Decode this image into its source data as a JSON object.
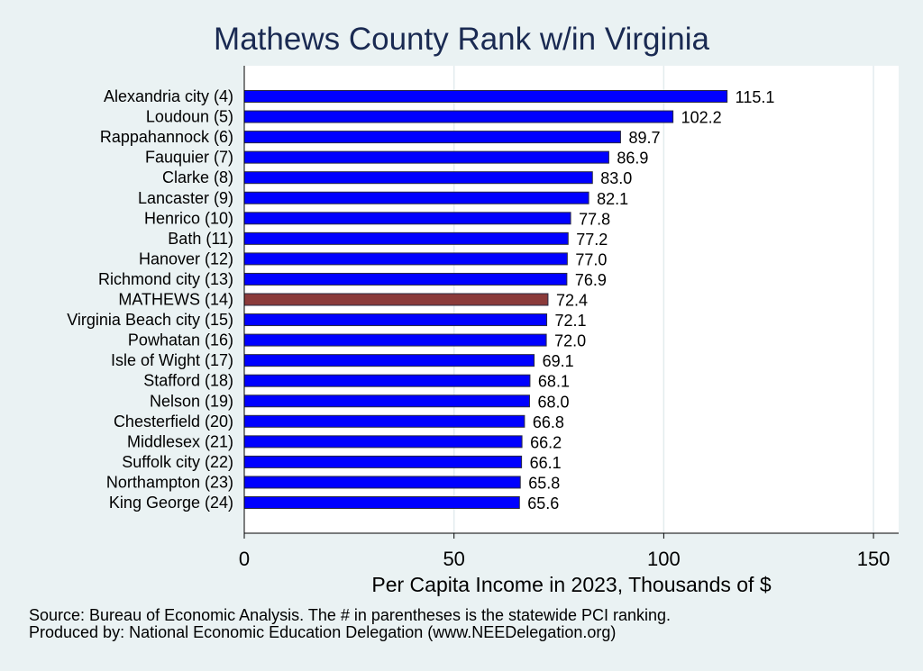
{
  "chart_data": {
    "type": "bar",
    "orientation": "horizontal",
    "title": "Mathews County Rank w/in Virginia",
    "xlabel": "Per Capita Income in 2023, Thousands of $",
    "ylabel": "",
    "xlim": [
      0,
      156
    ],
    "xticks": [
      0,
      50,
      100,
      150
    ],
    "grid": true,
    "categories": [
      "Alexandria city  (4)",
      "Loudoun  (5)",
      "Rappahannock  (6)",
      "Fauquier  (7)",
      "Clarke  (8)",
      "Lancaster  (9)",
      "Henrico (10)",
      "Bath (11)",
      "Hanover (12)",
      "Richmond city (13)",
      "MATHEWS (14)",
      "Virginia Beach city (15)",
      "Powhatan (16)",
      "Isle of Wight (17)",
      "Stafford (18)",
      "Nelson (19)",
      "Chesterfield (20)",
      "Middlesex (21)",
      "Suffolk city (22)",
      "Northampton (23)",
      "King George (24)"
    ],
    "values": [
      115.1,
      102.2,
      89.7,
      86.9,
      83.0,
      82.1,
      77.8,
      77.2,
      77.0,
      76.9,
      72.4,
      72.1,
      72.0,
      69.1,
      68.1,
      68.0,
      66.8,
      66.2,
      66.1,
      65.8,
      65.6
    ],
    "value_labels": [
      "115.1",
      "102.2",
      "89.7",
      "86.9",
      "83.0",
      "82.1",
      "77.8",
      "77.2",
      "77.0",
      "76.9",
      "72.4",
      "72.1",
      "72.0",
      "69.1",
      "68.1",
      "68.0",
      "66.8",
      "66.2",
      "66.1",
      "65.8",
      "65.6"
    ],
    "highlight_index": 10,
    "colors": {
      "bar": "#0000ff",
      "highlight": "#8b3a3a",
      "plot_bg": "#ffffff",
      "page_bg": "#eaf2f3",
      "title": "#1a2a52",
      "grid": "#e3ecee"
    }
  },
  "notes": {
    "source": "Source: Bureau of Economic Analysis. The # in parentheses is the statewide PCI ranking.",
    "produced_by": "Produced by: National Economic Education Delegation (www.NEEDelegation.org)"
  }
}
